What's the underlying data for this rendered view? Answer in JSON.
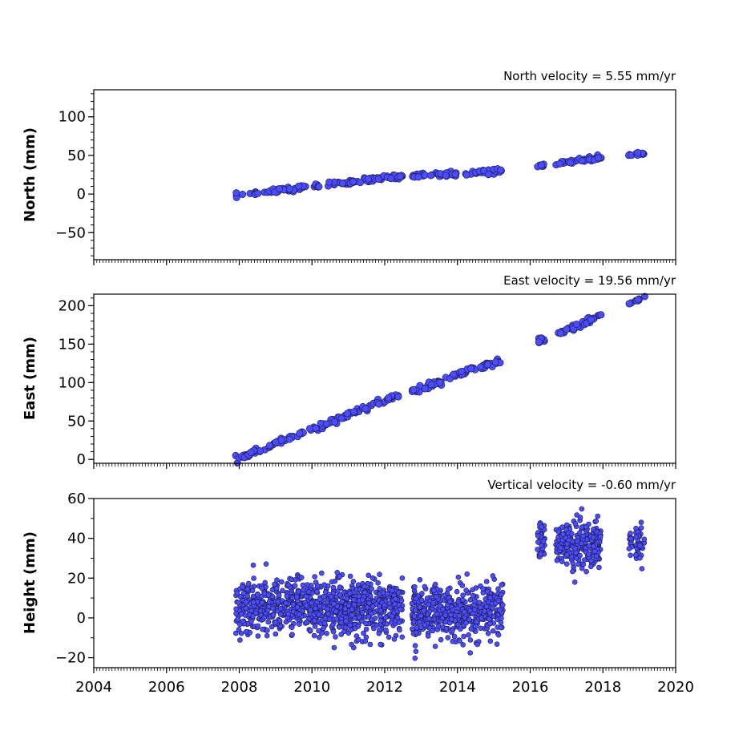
{
  "chart_data": [
    {
      "type": "scatter",
      "annotation": "North velocity = 5.55 mm/yr",
      "ylabel": "North (mm)",
      "xlim": [
        2004,
        2020
      ],
      "ylim": [
        -85,
        135
      ],
      "yticks": [
        100,
        50,
        0,
        -50
      ],
      "ytick_labels": [
        "100",
        "50",
        "0",
        "−50"
      ],
      "marker_color": "#4b4bff",
      "series": [
        {
          "segments": [
            {
              "x0": 2007.9,
              "x1": 2012.5,
              "y0": -2,
              "y1": 24,
              "noise": 1.6,
              "n": 110
            },
            {
              "x0": 2012.75,
              "x1": 2015.25,
              "y0": 23,
              "y1": 30,
              "noise": 1.6,
              "n": 60
            },
            {
              "x0": 2016.2,
              "x1": 2016.4,
              "y0": 36,
              "y1": 38,
              "noise": 1.2,
              "n": 8
            },
            {
              "x0": 2016.7,
              "x1": 2017.95,
              "y0": 40,
              "y1": 47,
              "noise": 1.4,
              "n": 40
            },
            {
              "x0": 2018.7,
              "x1": 2018.8,
              "y0": 50,
              "y1": 51,
              "noise": 1.0,
              "n": 3
            },
            {
              "x0": 2018.9,
              "x1": 2019.15,
              "y0": 51,
              "y1": 52,
              "noise": 1.0,
              "n": 8
            }
          ]
        }
      ]
    },
    {
      "type": "scatter",
      "annotation": "East velocity = 19.56 mm/yr",
      "ylabel": "East (mm)",
      "xlim": [
        2004,
        2020
      ],
      "ylim": [
        -5,
        215
      ],
      "yticks": [
        200,
        150,
        100,
        50,
        0
      ],
      "ytick_labels": [
        "200",
        "150",
        "100",
        "50",
        "0"
      ],
      "marker_color": "#4b4bff",
      "series": [
        {
          "segments": [
            {
              "x0": 2007.9,
              "x1": 2012.5,
              "y0": 0,
              "y1": 86,
              "noise": 1.8,
              "n": 120
            },
            {
              "x0": 2012.75,
              "x1": 2015.25,
              "y0": 88,
              "y1": 130,
              "noise": 2.0,
              "n": 70
            },
            {
              "x0": 2016.2,
              "x1": 2016.4,
              "y0": 153,
              "y1": 158,
              "noise": 1.5,
              "n": 8
            },
            {
              "x0": 2016.7,
              "x1": 2017.95,
              "y0": 162,
              "y1": 187,
              "noise": 2.0,
              "n": 40
            },
            {
              "x0": 2018.7,
              "x1": 2018.8,
              "y0": 202,
              "y1": 204,
              "noise": 1.0,
              "n": 3
            },
            {
              "x0": 2018.9,
              "x1": 2019.15,
              "y0": 206,
              "y1": 212,
              "noise": 1.0,
              "n": 8
            }
          ]
        }
      ]
    },
    {
      "type": "scatter",
      "annotation": "Vertical velocity = -0.60 mm/yr",
      "ylabel": "Height (mm)",
      "xlim": [
        2004,
        2020
      ],
      "ylim": [
        -25,
        60
      ],
      "yticks": [
        60,
        40,
        20,
        0,
        -20
      ],
      "ytick_labels": [
        "60",
        "40",
        "20",
        "0",
        "−20"
      ],
      "xticks": [
        2004,
        2006,
        2008,
        2010,
        2012,
        2014,
        2016,
        2018,
        2020
      ],
      "xtick_labels": [
        "2004",
        "2006",
        "2008",
        "2010",
        "2012",
        "2014",
        "2016",
        "2018",
        "2020"
      ],
      "marker_color": "#4b4bff",
      "series": [
        {
          "segments": [
            {
              "x0": 2007.9,
              "x1": 2012.5,
              "y0": 5,
              "y1": 5,
              "noise": 7,
              "n": 900
            },
            {
              "x0": 2012.75,
              "x1": 2015.25,
              "y0": 3,
              "y1": 3,
              "noise": 7,
              "n": 480
            },
            {
              "x0": 2016.2,
              "x1": 2016.4,
              "y0": 38,
              "y1": 38,
              "noise": 5,
              "n": 40
            },
            {
              "x0": 2016.7,
              "x1": 2017.95,
              "y0": 36,
              "y1": 36,
              "noise": 6,
              "n": 260
            },
            {
              "x0": 2018.7,
              "x1": 2018.8,
              "y0": 37,
              "y1": 37,
              "noise": 3,
              "n": 12
            },
            {
              "x0": 2018.9,
              "x1": 2019.15,
              "y0": 38,
              "y1": 38,
              "noise": 4,
              "n": 40
            }
          ]
        }
      ]
    }
  ]
}
